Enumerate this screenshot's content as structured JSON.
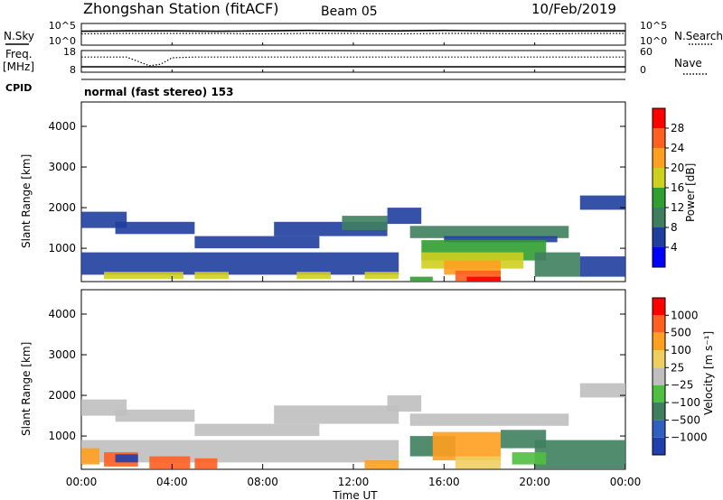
{
  "header": {
    "station": "Zhongshan Station (fitACF)",
    "beam": "Beam 05",
    "date": "10/Feb/2019",
    "mode": "normal (fast stereo) 153"
  },
  "colors": {
    "power_scale": [
      "#0000ff",
      "#1f3f9f",
      "#3f7f5f",
      "#2f9f2f",
      "#cfcf1f",
      "#ff9f1f",
      "#ff5f1f",
      "#ff0000"
    ],
    "velocity_scale": [
      "#1f3faf",
      "#2f5fbf",
      "#3f7f5f",
      "#4fbf3f",
      "#bfbfbf",
      "#efcf5f",
      "#ff9f1f",
      "#ff5f1f",
      "#ff0000"
    ],
    "trace": "#000000"
  },
  "chart_data": [
    {
      "type": "line",
      "panel": "sky-noise",
      "left_label": "N.Sky",
      "right_label": "N.Search",
      "left_ticks": [
        "10^5",
        "10^0"
      ],
      "right_ticks": [
        "10^5",
        "10^0"
      ],
      "x_range": [
        0,
        24
      ],
      "series": [
        {
          "name": "N.Sky",
          "style": "solid",
          "x": [
            0,
            2,
            4,
            6,
            8,
            10,
            12,
            14,
            16,
            18,
            20,
            22,
            24
          ],
          "values": [
            3.2,
            3.3,
            3.3,
            3.2,
            3.3,
            3.4,
            3.3,
            3.3,
            3.4,
            3.3,
            3.3,
            3.3,
            3.3
          ]
        },
        {
          "name": "N.Search",
          "style": "dotted",
          "x": [
            0,
            2,
            4,
            6,
            8,
            10,
            12,
            14,
            16,
            18,
            20,
            22,
            24
          ],
          "values": [
            2.6,
            2.7,
            2.7,
            2.7,
            2.6,
            2.7,
            2.7,
            2.6,
            2.7,
            2.7,
            2.6,
            2.7,
            2.7
          ]
        }
      ]
    },
    {
      "type": "line",
      "panel": "frequency",
      "left_label": "Freq.",
      "left_unit": "[MHz]",
      "right_label": "Nave",
      "left_ticks": [
        "18",
        "8"
      ],
      "right_ticks": [
        "60",
        "0"
      ],
      "cpid_label": "CPID",
      "x_range": [
        0,
        24
      ],
      "series": [
        {
          "name": "Freq.",
          "style": "solid",
          "x": [
            0,
            24
          ],
          "values": [
            10.5,
            10.5
          ]
        },
        {
          "name": "Nave",
          "style": "dotted",
          "x": [
            0,
            2,
            2.5,
            3,
            3.5,
            4,
            5,
            6,
            8,
            12,
            16,
            20,
            24
          ],
          "values": [
            42,
            42,
            30,
            18,
            22,
            40,
            42,
            42,
            42,
            42,
            42,
            42,
            42
          ]
        }
      ]
    },
    {
      "type": "heatmap",
      "panel": "power",
      "title": "",
      "xlabel": "",
      "ylabel": "Slant Range [km]",
      "x_range": [
        0,
        24
      ],
      "ylim": [
        180,
        4600
      ],
      "y_ticks": [
        1000,
        2000,
        3000,
        4000
      ],
      "colorbar_label": "Power [dB]",
      "colorbar_ticks": [
        "4",
        "8",
        "12",
        "16",
        "20",
        "24",
        "28"
      ],
      "colorbar_range": [
        0,
        32
      ],
      "regions": [
        {
          "t0": 0.0,
          "t1": 2.0,
          "r0": 1500,
          "r1": 1900,
          "level": 1
        },
        {
          "t0": 1.5,
          "t1": 5.0,
          "r0": 1350,
          "r1": 1650,
          "level": 1
        },
        {
          "t0": 5.0,
          "t1": 10.5,
          "r0": 1000,
          "r1": 1300,
          "level": 1
        },
        {
          "t0": 8.5,
          "t1": 13.5,
          "r0": 1300,
          "r1": 1650,
          "level": 1
        },
        {
          "t0": 11.5,
          "t1": 13.5,
          "r0": 1450,
          "r1": 1800,
          "level": 2
        },
        {
          "t0": 13.5,
          "t1": 15.0,
          "r0": 1600,
          "r1": 2000,
          "level": 1
        },
        {
          "t0": 14.5,
          "t1": 21.5,
          "r0": 1250,
          "r1": 1550,
          "level": 2
        },
        {
          "t0": 16.0,
          "t1": 21.0,
          "r0": 1150,
          "r1": 1300,
          "level": 1
        },
        {
          "t0": 0.0,
          "t1": 14.0,
          "r0": 350,
          "r1": 900,
          "level": 1
        },
        {
          "t0": 1.0,
          "t1": 4.5,
          "r0": 250,
          "r1": 420,
          "level": 4
        },
        {
          "t0": 5.0,
          "t1": 6.5,
          "r0": 250,
          "r1": 420,
          "level": 4
        },
        {
          "t0": 9.5,
          "t1": 11.0,
          "r0": 250,
          "r1": 420,
          "level": 4
        },
        {
          "t0": 12.5,
          "t1": 14.0,
          "r0": 250,
          "r1": 420,
          "level": 4
        },
        {
          "t0": 15.0,
          "t1": 20.5,
          "r0": 700,
          "r1": 1200,
          "level": 3
        },
        {
          "t0": 15.0,
          "t1": 19.5,
          "r0": 500,
          "r1": 900,
          "level": 4
        },
        {
          "t0": 16.0,
          "t1": 18.5,
          "r0": 350,
          "r1": 700,
          "level": 5
        },
        {
          "t0": 16.5,
          "t1": 18.5,
          "r0": 200,
          "r1": 450,
          "level": 6
        },
        {
          "t0": 17.0,
          "t1": 18.5,
          "r0": 180,
          "r1": 300,
          "level": 7
        },
        {
          "t0": 20.0,
          "t1": 22.0,
          "r0": 300,
          "r1": 900,
          "level": 2
        },
        {
          "t0": 22.0,
          "t1": 24.0,
          "r0": 300,
          "r1": 800,
          "level": 1
        },
        {
          "t0": 22.0,
          "t1": 24.0,
          "r0": 1950,
          "r1": 2300,
          "level": 1
        },
        {
          "t0": 14.5,
          "t1": 15.5,
          "r0": 200,
          "r1": 300,
          "level": 3
        }
      ]
    },
    {
      "type": "heatmap",
      "panel": "velocity",
      "title": "",
      "xlabel": "Time UT",
      "ylabel": "Slant Range [km]",
      "x_range": [
        0,
        24
      ],
      "x_ticks": [
        "00:00",
        "04:00",
        "08:00",
        "12:00",
        "16:00",
        "20:00",
        "00:00"
      ],
      "ylim": [
        180,
        4600
      ],
      "y_ticks": [
        1000,
        2000,
        3000,
        4000
      ],
      "colorbar_label": "Velocity [m s⁻¹]",
      "colorbar_ticks": [
        "1000",
        "500",
        "100",
        "25",
        "−25",
        "−100",
        "−500",
        "−1000"
      ],
      "regions": [
        {
          "t0": 0.0,
          "t1": 2.0,
          "r0": 1500,
          "r1": 1900,
          "level": 4
        },
        {
          "t0": 1.5,
          "t1": 5.0,
          "r0": 1350,
          "r1": 1650,
          "level": 4
        },
        {
          "t0": 5.0,
          "t1": 10.5,
          "r0": 1000,
          "r1": 1300,
          "level": 4
        },
        {
          "t0": 8.5,
          "t1": 14.0,
          "r0": 1300,
          "r1": 1750,
          "level": 4
        },
        {
          "t0": 13.5,
          "t1": 15.0,
          "r0": 1600,
          "r1": 2000,
          "level": 4
        },
        {
          "t0": 14.5,
          "t1": 21.5,
          "r0": 1250,
          "r1": 1550,
          "level": 4
        },
        {
          "t0": 0.0,
          "t1": 14.0,
          "r0": 350,
          "r1": 900,
          "level": 4
        },
        {
          "t0": 0.0,
          "t1": 0.8,
          "r0": 300,
          "r1": 700,
          "level": 6
        },
        {
          "t0": 1.0,
          "t1": 2.5,
          "r0": 250,
          "r1": 600,
          "level": 7
        },
        {
          "t0": 1.5,
          "t1": 2.5,
          "r0": 350,
          "r1": 550,
          "level": 0
        },
        {
          "t0": 3.0,
          "t1": 4.8,
          "r0": 200,
          "r1": 500,
          "level": 7
        },
        {
          "t0": 5.0,
          "t1": 6.0,
          "r0": 200,
          "r1": 450,
          "level": 7
        },
        {
          "t0": 12.5,
          "t1": 14.0,
          "r0": 200,
          "r1": 400,
          "level": 6
        },
        {
          "t0": 14.5,
          "t1": 16.5,
          "r0": 500,
          "r1": 1000,
          "level": 2
        },
        {
          "t0": 15.5,
          "t1": 18.5,
          "r0": 400,
          "r1": 1100,
          "level": 6
        },
        {
          "t0": 16.5,
          "t1": 18.5,
          "r0": 200,
          "r1": 500,
          "level": 5
        },
        {
          "t0": 18.5,
          "t1": 20.5,
          "r0": 700,
          "r1": 1150,
          "level": 2
        },
        {
          "t0": 20.0,
          "t1": 24.0,
          "r0": 200,
          "r1": 900,
          "level": 2
        },
        {
          "t0": 22.0,
          "t1": 24.0,
          "r0": 1950,
          "r1": 2300,
          "level": 4
        },
        {
          "t0": 19.0,
          "t1": 20.5,
          "r0": 300,
          "r1": 600,
          "level": 3
        }
      ]
    }
  ]
}
